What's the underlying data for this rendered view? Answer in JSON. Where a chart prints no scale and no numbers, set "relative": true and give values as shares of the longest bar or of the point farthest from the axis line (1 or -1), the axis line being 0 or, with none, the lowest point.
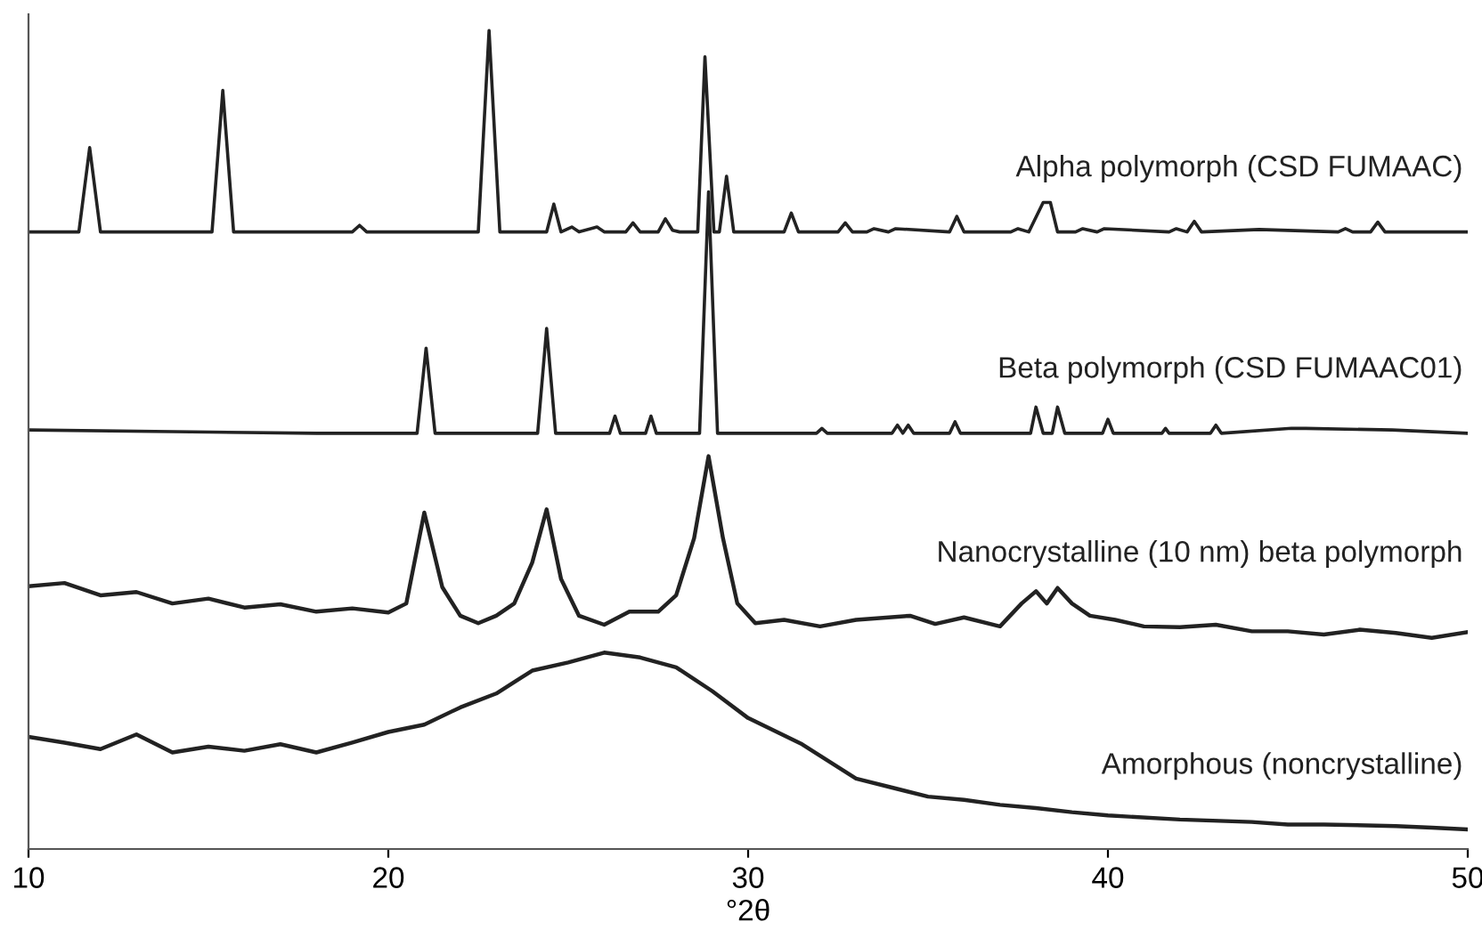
{
  "chart_data": {
    "type": "line",
    "relative": true,
    "xlabel": "°2θ",
    "xlim": [
      10,
      50
    ],
    "xticks": [
      10,
      20,
      30,
      40,
      50
    ],
    "grid": false,
    "legend": false,
    "marker": "none",
    "line_style": "solid",
    "series": [
      {
        "name": "Alpha polymorph (CSD FUMAAC)",
        "color": "#222222",
        "x": [
          10,
          11.4,
          11.7,
          12.0,
          15.1,
          15.4,
          15.7,
          19.0,
          19.2,
          19.4,
          22.5,
          22.8,
          23.1,
          24.4,
          24.6,
          24.8,
          25.1,
          25.3,
          25.8,
          26.0,
          26.6,
          26.8,
          27.0,
          27.5,
          27.7,
          27.9,
          28.1,
          28.6,
          28.8,
          29.05,
          29.2,
          29.4,
          29.6,
          31.0,
          31.2,
          31.4,
          32.5,
          32.7,
          32.9,
          33.3,
          33.5,
          33.9,
          34.1,
          35.6,
          35.8,
          36.0,
          37.3,
          37.5,
          37.8,
          38.2,
          38.4,
          38.6,
          39.1,
          39.3,
          39.7,
          39.9,
          41.7,
          41.9,
          42.2,
          42.4,
          42.6,
          44.2,
          46.4,
          46.6,
          46.8,
          47.3,
          47.5,
          47.7,
          50
        ],
        "values": [
          0.754,
          0.754,
          0.857,
          0.754,
          0.754,
          0.927,
          0.754,
          0.754,
          0.762,
          0.754,
          0.754,
          1.0,
          0.754,
          0.754,
          0.788,
          0.754,
          0.76,
          0.754,
          0.76,
          0.754,
          0.754,
          0.765,
          0.754,
          0.754,
          0.77,
          0.756,
          0.754,
          0.754,
          0.968,
          0.754,
          0.754,
          0.822,
          0.754,
          0.754,
          0.777,
          0.754,
          0.754,
          0.765,
          0.754,
          0.754,
          0.758,
          0.754,
          0.758,
          0.754,
          0.773,
          0.754,
          0.754,
          0.758,
          0.754,
          0.79,
          0.79,
          0.754,
          0.754,
          0.758,
          0.754,
          0.758,
          0.754,
          0.758,
          0.754,
          0.767,
          0.754,
          0.757,
          0.754,
          0.758,
          0.754,
          0.754,
          0.766,
          0.754,
          0.754
        ]
      },
      {
        "name": "Beta polymorph (CSD FUMAAC01)",
        "color": "#222222",
        "x": [
          10,
          14,
          18,
          20.8,
          21.05,
          21.3,
          24.15,
          24.4,
          24.65,
          26.15,
          26.3,
          26.45,
          27.15,
          27.3,
          27.45,
          28.65,
          28.9,
          29.15,
          31.9,
          32.05,
          32.2,
          34.0,
          34.15,
          34.3,
          34.45,
          34.6,
          35.6,
          35.75,
          35.9,
          37.85,
          38.0,
          38.2,
          38.45,
          38.6,
          38.8,
          39.85,
          40.0,
          40.15,
          41.5,
          41.6,
          41.7,
          42.85,
          43.0,
          43.15,
          45.1,
          45.5,
          47.9,
          50
        ],
        "values": [
          0.512,
          0.51,
          0.508,
          0.508,
          0.612,
          0.508,
          0.508,
          0.636,
          0.508,
          0.508,
          0.529,
          0.508,
          0.508,
          0.529,
          0.508,
          0.508,
          0.803,
          0.508,
          0.508,
          0.514,
          0.508,
          0.508,
          0.518,
          0.508,
          0.518,
          0.508,
          0.508,
          0.522,
          0.508,
          0.508,
          0.54,
          0.508,
          0.508,
          0.54,
          0.508,
          0.508,
          0.525,
          0.508,
          0.508,
          0.514,
          0.508,
          0.508,
          0.518,
          0.508,
          0.514,
          0.514,
          0.512,
          0.508
        ]
      },
      {
        "name": "Nanocrystalline (10 nm) beta polymorph",
        "color": "#222222",
        "x": [
          10,
          11,
          12,
          13,
          14,
          15,
          16,
          17,
          18,
          19,
          20,
          20.5,
          21.0,
          21.5,
          22.0,
          22.5,
          23.0,
          23.5,
          24.0,
          24.4,
          24.8,
          25.3,
          26.0,
          26.7,
          27.5,
          28.0,
          28.5,
          28.9,
          29.3,
          29.7,
          30.2,
          31,
          32,
          33,
          34.5,
          35.2,
          36,
          37,
          37.6,
          38.0,
          38.3,
          38.6,
          39.0,
          39.5,
          40.2,
          41,
          42,
          43,
          44,
          45,
          46,
          47,
          48,
          49,
          50
        ],
        "values": [
          0.321,
          0.325,
          0.31,
          0.314,
          0.3,
          0.306,
          0.295,
          0.299,
          0.29,
          0.294,
          0.289,
          0.3,
          0.411,
          0.32,
          0.285,
          0.276,
          0.285,
          0.3,
          0.35,
          0.415,
          0.33,
          0.285,
          0.274,
          0.29,
          0.29,
          0.31,
          0.38,
          0.48,
          0.38,
          0.3,
          0.276,
          0.28,
          0.272,
          0.28,
          0.285,
          0.275,
          0.283,
          0.272,
          0.3,
          0.315,
          0.3,
          0.319,
          0.3,
          0.285,
          0.28,
          0.272,
          0.271,
          0.274,
          0.266,
          0.266,
          0.262,
          0.268,
          0.264,
          0.258,
          0.265
        ]
      },
      {
        "name": "Amorphous (noncrystalline)",
        "color": "#222222",
        "x": [
          10,
          11,
          12,
          13,
          14,
          15,
          16,
          17,
          18,
          19,
          20,
          21,
          22,
          23,
          24,
          25,
          26,
          27,
          28,
          29,
          30,
          31.5,
          33,
          34,
          35,
          36,
          37,
          38,
          39,
          40,
          42,
          44,
          45,
          46,
          48,
          49,
          50
        ],
        "values": [
          0.137,
          0.13,
          0.122,
          0.14,
          0.118,
          0.125,
          0.12,
          0.128,
          0.118,
          0.13,
          0.143,
          0.152,
          0.173,
          0.19,
          0.218,
          0.228,
          0.24,
          0.234,
          0.222,
          0.193,
          0.16,
          0.128,
          0.086,
          0.075,
          0.064,
          0.06,
          0.054,
          0.05,
          0.045,
          0.041,
          0.036,
          0.033,
          0.03,
          0.03,
          0.028,
          0.026,
          0.024
        ]
      }
    ]
  }
}
